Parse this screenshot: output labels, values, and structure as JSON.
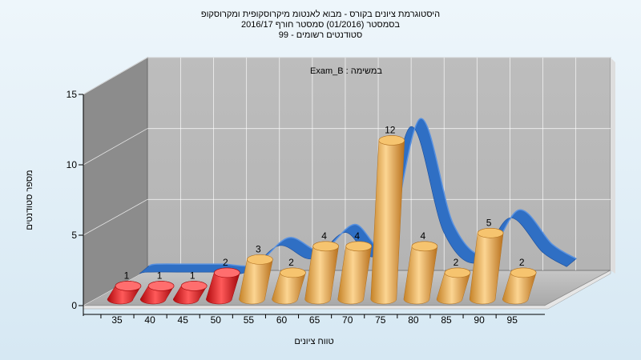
{
  "header": {
    "line1": "היסטוגרמת ציונים בקורס - מבוא לאנטומ מיקרוסקופית ומקרוסקופ",
    "line2": "בסמסטר (01/2016) סמסטר חורף 2016/17",
    "line3": "סטודנטים רשומים - 99"
  },
  "chart_data": {
    "type": "bar",
    "title": "",
    "inner_label": "Exam_B : במשימה",
    "xlabel": "טווח ציונים",
    "ylabel": "מספר סטודנטים",
    "ylim": [
      0,
      15
    ],
    "yticks": [
      0,
      5,
      10,
      15
    ],
    "categories": [
      "35",
      "40",
      "45",
      "50",
      "55",
      "60",
      "65",
      "70",
      "75",
      "80",
      "85",
      "90",
      "95"
    ],
    "values": [
      1,
      1,
      1,
      2,
      3,
      2,
      4,
      4,
      12,
      4,
      2,
      5,
      2
    ],
    "bar_colors": [
      "#e0191d",
      "#e0191d",
      "#e0191d",
      "#e0191d",
      "#e8a646",
      "#e8a646",
      "#e8a646",
      "#e8a646",
      "#e8a646",
      "#e8a646",
      "#e8a646",
      "#e8a646",
      "#e8a646"
    ],
    "curve": {
      "type": "area",
      "color": "#2f6fc4",
      "x": [
        35,
        40,
        45,
        50,
        55,
        60,
        65,
        70,
        75,
        80,
        85,
        90,
        95
      ],
      "values": [
        1.5,
        1.5,
        1.5,
        1.5,
        3.5,
        2.5,
        4.5,
        3.0,
        12.5,
        4.5,
        2.2,
        5.6,
        3.0
      ]
    },
    "grid": true,
    "legend": "none"
  }
}
